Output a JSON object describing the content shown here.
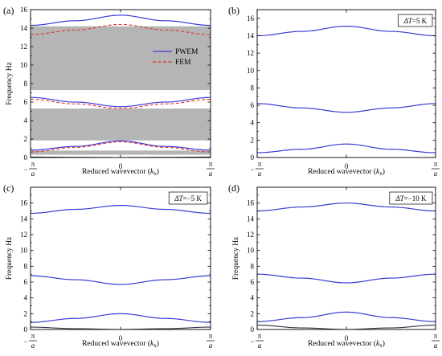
{
  "chart_data": [
    {
      "panel": "(a)",
      "type": "line",
      "xlabel": "Reduced wavevector (kx)",
      "ylabel": "Frequency Hz",
      "x_ticks": [
        "−π/a",
        "0",
        "π/a"
      ],
      "y_ticks": [
        0,
        2,
        4,
        6,
        8,
        10,
        12,
        14,
        16
      ],
      "ylim": [
        0,
        16
      ],
      "annotation": "",
      "legend": [
        "PWEM",
        "FEM"
      ],
      "legend_position": "center-right",
      "colors": {
        "pwem": "#3b3bd4",
        "fem": "#e0312b",
        "gap": "#b5b5b5"
      },
      "band_gaps": [
        [
          0.3,
          0.75
        ],
        [
          1.85,
          5.3
        ],
        [
          7.3,
          14.2
        ]
      ],
      "x": [
        -1,
        -0.5,
        0,
        0.5,
        1
      ],
      "series": [
        {
          "name": "PWEM",
          "curves": [
            [
              0.05,
              0.02,
              0.0,
              0.02,
              0.05
            ],
            [
              0.8,
              1.2,
              1.8,
              1.2,
              0.8
            ],
            [
              6.5,
              6.0,
              5.5,
              6.0,
              6.5
            ],
            [
              14.3,
              14.8,
              15.4,
              14.8,
              14.3
            ]
          ]
        },
        {
          "name": "FEM",
          "curves": [
            [
              0.6,
              1.1,
              1.7,
              1.1,
              0.6
            ],
            [
              6.3,
              5.8,
              5.3,
              5.8,
              6.3
            ],
            [
              13.3,
              13.8,
              14.4,
              13.8,
              13.3
            ]
          ]
        }
      ]
    },
    {
      "panel": "(b)",
      "type": "line",
      "xlabel": "Reduced wavevector (kx)",
      "ylabel": "",
      "x_ticks": [
        "−π/a",
        "0",
        "π/a"
      ],
      "y_ticks": [
        0,
        2,
        4,
        6,
        8,
        10,
        12,
        14,
        16
      ],
      "ylim": [
        0,
        17
      ],
      "annotation": "ΔT=5 K",
      "x": [
        -1,
        -0.5,
        0,
        0.5,
        1
      ],
      "series": [
        {
          "name": "",
          "curves": [
            [
              0.55,
              0.95,
              1.55,
              0.95,
              0.55
            ],
            [
              6.2,
              5.7,
              5.2,
              5.7,
              6.2
            ],
            [
              14.0,
              14.5,
              15.1,
              14.5,
              14.0
            ]
          ]
        }
      ]
    },
    {
      "panel": "(c)",
      "type": "line",
      "xlabel": "Reduced wavevector (kx)",
      "ylabel": "Frequency Hz",
      "x_ticks": [
        "−π/a",
        "0",
        "π/a"
      ],
      "y_ticks": [
        0,
        2,
        4,
        6,
        8,
        10,
        12,
        14,
        16
      ],
      "ylim": [
        0,
        18
      ],
      "annotation": "ΔT=−5 K",
      "x": [
        -1,
        -0.5,
        0,
        0.5,
        1
      ],
      "series": [
        {
          "name": "",
          "curves": [
            [
              0.3,
              0.1,
              0.0,
              0.1,
              0.3
            ],
            [
              0.9,
              1.4,
              2.0,
              1.4,
              0.9
            ],
            [
              6.8,
              6.3,
              5.7,
              6.3,
              6.8
            ],
            [
              14.7,
              15.2,
              15.7,
              15.2,
              14.7
            ]
          ]
        }
      ]
    },
    {
      "panel": "(d)",
      "type": "line",
      "xlabel": "Reduced wavevector (kx)",
      "ylabel": "Frequency Hz",
      "x_ticks": [
        "−π/a",
        "0",
        "π/a"
      ],
      "y_ticks": [
        0,
        2,
        4,
        6,
        8,
        10,
        12,
        14,
        16
      ],
      "ylim": [
        0,
        18
      ],
      "annotation": "ΔT=−10 K",
      "x": [
        -1,
        -0.5,
        0,
        0.5,
        1
      ],
      "series": [
        {
          "name": "",
          "curves": [
            [
              0.55,
              0.2,
              0.0,
              0.2,
              0.55
            ],
            [
              1.0,
              1.5,
              2.2,
              1.5,
              1.0
            ],
            [
              7.0,
              6.5,
              5.9,
              6.5,
              7.0
            ],
            [
              15.0,
              15.5,
              16.0,
              15.5,
              15.0
            ]
          ]
        }
      ]
    }
  ]
}
